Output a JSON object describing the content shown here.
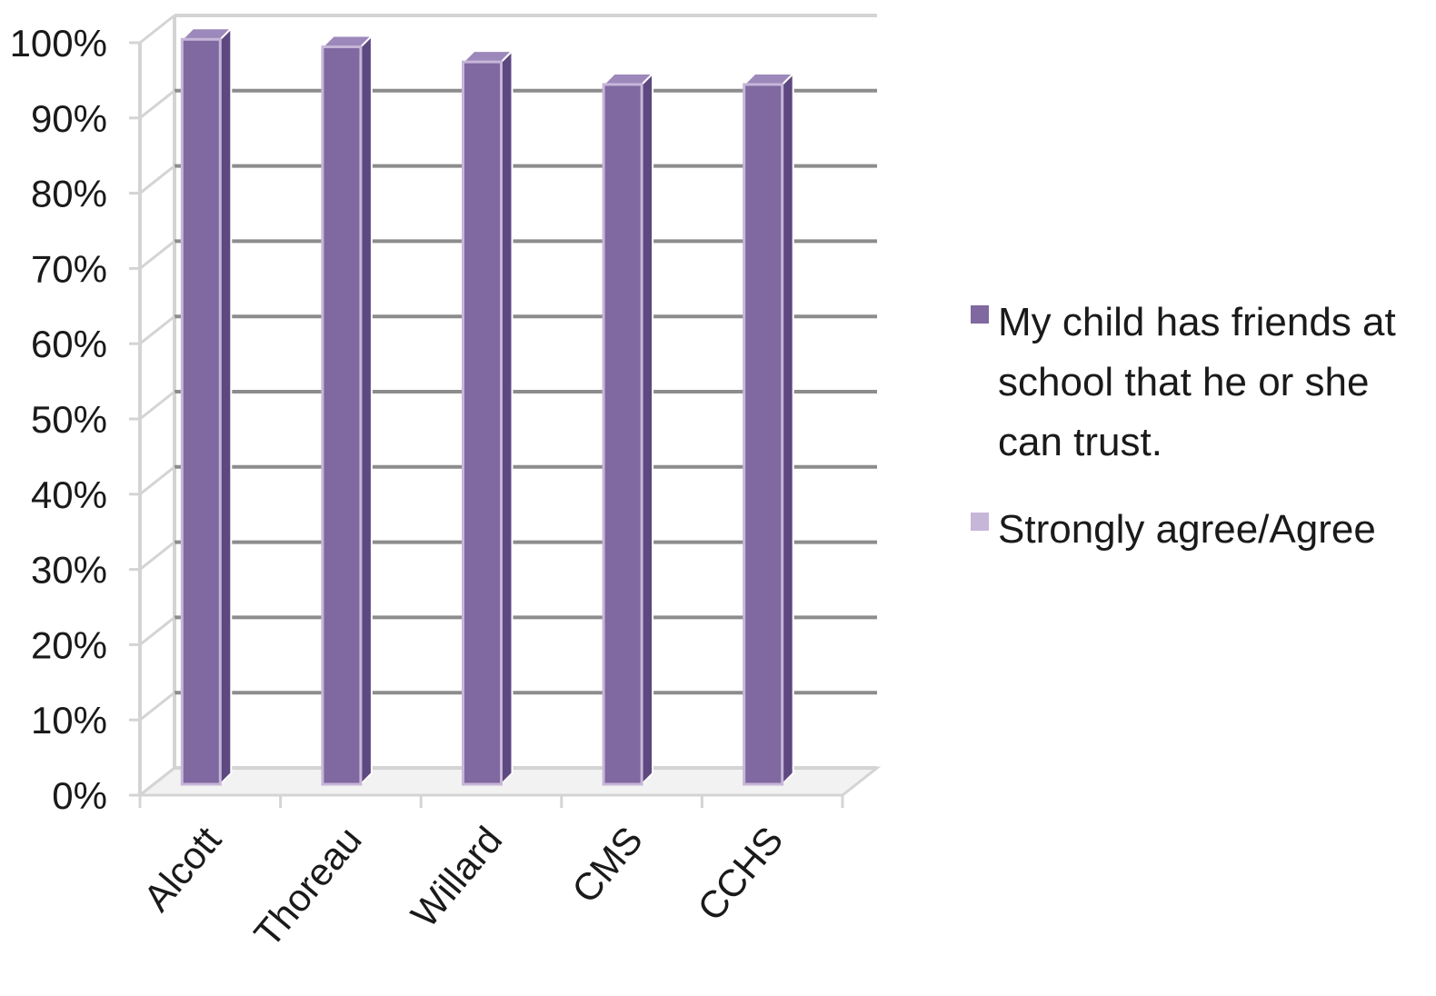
{
  "chart_data": {
    "type": "bar",
    "title": "",
    "xlabel": "",
    "ylabel": "",
    "categories": [
      "Alcott",
      "Thoreau",
      "Willard",
      "CMS",
      "CCHS"
    ],
    "series": [
      {
        "name": "Strongly agree/Agree",
        "values": [
          99,
          98,
          96,
          93,
          93
        ]
      }
    ],
    "legend_entries": [
      {
        "label": "My child has friends at school that he or she can trust.",
        "color": "#8068A0"
      },
      {
        "label": "Strongly agree/Agree",
        "color": "#C6B6D8"
      }
    ],
    "yticks": [
      "0%",
      "10%",
      "20%",
      "30%",
      "40%",
      "50%",
      "60%",
      "70%",
      "80%",
      "90%",
      "100%"
    ],
    "ylim": [
      0,
      100
    ],
    "grid": true,
    "legend_position": "right",
    "colors": {
      "bar_front": "#8068A0",
      "bar_side": "#5E4880",
      "bar_top": "#9C88BA",
      "bar_highlight": "#C6B6D8",
      "grid": "#8C8C8C",
      "wall": "#D4D4D4"
    }
  }
}
